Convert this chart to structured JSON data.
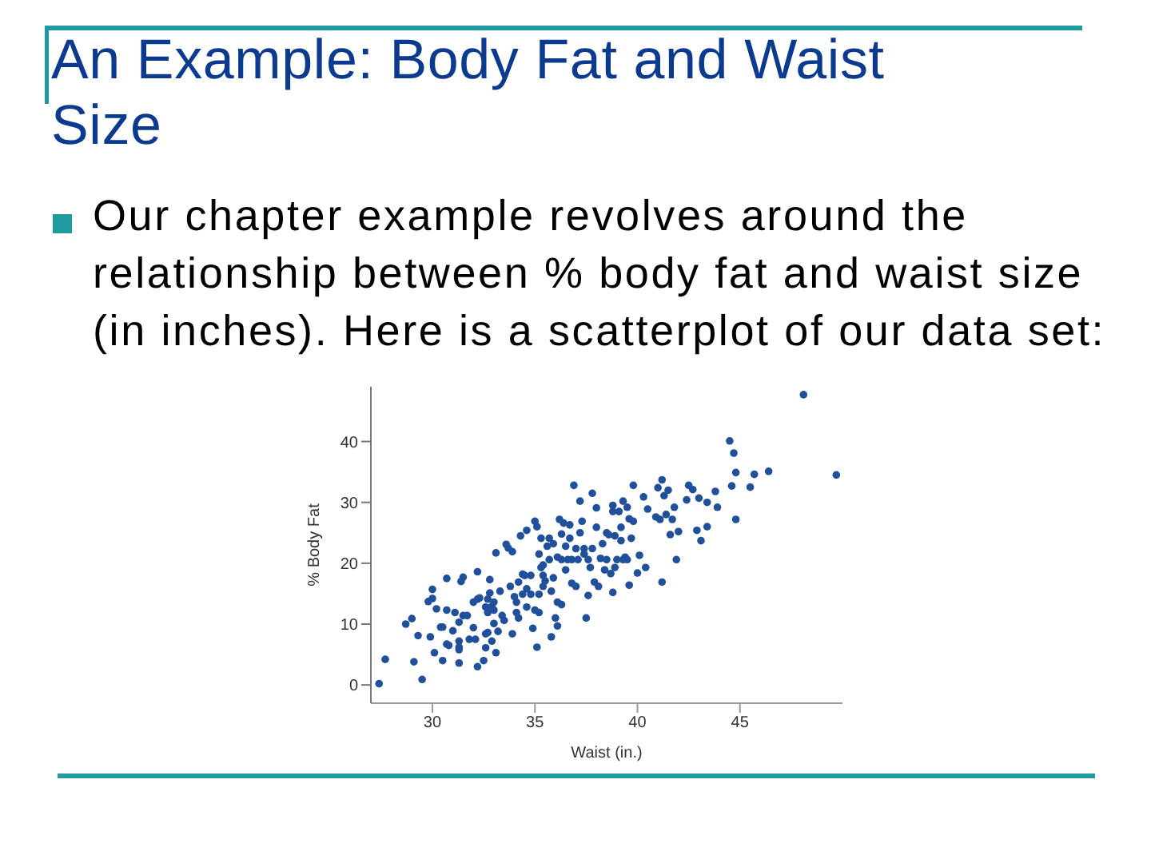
{
  "chart_data": {
    "type": "scatter",
    "title": "An Example: Body Fat and Waist Size",
    "annotations": [
      "Our chapter example revolves around the relationship between % body fat and waist size (in inches). Here is a scatterplot of our data set:"
    ],
    "xlabel": "Waist (in.)",
    "ylabel": "% Body Fat",
    "x": [
      27.4,
      27.7,
      29.1,
      29.5,
      28.7,
      29.0,
      29.3,
      29.9,
      29.8,
      30.0,
      30.0,
      30.1,
      30.2,
      30.4,
      30.5,
      30.5,
      30.7,
      30.8,
      30.7,
      30.7,
      31.0,
      31.1,
      31.3,
      31.3,
      31.3,
      31.3,
      31.4,
      31.5,
      31.5,
      31.3,
      31.7,
      31.8,
      32.0,
      32.0,
      32.1,
      32.2,
      32.2,
      32.2,
      32.3,
      32.5,
      32.6,
      32.6,
      32.7,
      32.7,
      32.6,
      32.8,
      32.8,
      32.7,
      32.9,
      33.0,
      33.0,
      33.0,
      32.9,
      33.1,
      33.1,
      33.2,
      33.3,
      33.4,
      33.5,
      33.6,
      33.7,
      33.9,
      33.8,
      33.9,
      34.0,
      34.1,
      34.1,
      34.2,
      34.2,
      34.3,
      34.4,
      34.4,
      34.5,
      34.6,
      34.6,
      34.6,
      34.8,
      34.8,
      34.9,
      35.0,
      35.0,
      35.1,
      35.1,
      35.2,
      35.2,
      35.2,
      35.3,
      35.3,
      35.4,
      35.4,
      35.4,
      35.5,
      35.6,
      35.7,
      35.7,
      35.8,
      35.8,
      35.9,
      35.9,
      36.0,
      36.1,
      36.1,
      36.1,
      36.2,
      36.3,
      36.3,
      36.3,
      36.4,
      36.5,
      36.5,
      36.6,
      36.7,
      36.7,
      36.8,
      36.8,
      36.9,
      37.0,
      37.0,
      37.1,
      37.2,
      37.2,
      37.3,
      37.4,
      37.4,
      37.5,
      37.6,
      37.6,
      37.7,
      37.8,
      37.8,
      37.9,
      38.0,
      38.0,
      38.1,
      38.2,
      38.3,
      38.4,
      38.5,
      38.5,
      38.6,
      38.7,
      38.8,
      38.8,
      38.8,
      38.9,
      38.9,
      39.0,
      39.1,
      39.2,
      39.2,
      39.3,
      39.3,
      39.4,
      39.5,
      39.5,
      39.6,
      39.6,
      39.7,
      39.8,
      39.8,
      40.0,
      40.1,
      40.3,
      40.4,
      40.5,
      40.9,
      41.0,
      41.1,
      41.2,
      41.2,
      41.3,
      41.4,
      41.5,
      41.6,
      41.7,
      41.8,
      41.9,
      42.0,
      42.4,
      42.5,
      42.7,
      42.9,
      43.0,
      43.1,
      43.4,
      43.4,
      43.8,
      43.9,
      44.5,
      44.7,
      44.6,
      44.8,
      44.8,
      45.5,
      45.7,
      46.4,
      48.1,
      49.7
    ],
    "values": [
      0.2,
      4.2,
      3.8,
      0.9,
      10.0,
      10.9,
      8.1,
      7.9,
      13.7,
      15.7,
      14.2,
      5.3,
      12.5,
      9.5,
      9.5,
      4.0,
      6.7,
      6.5,
      17.5,
      12.3,
      8.9,
      11.9,
      7.2,
      6.2,
      5.8,
      3.6,
      17.0,
      17.7,
      11.4,
      10.3,
      11.4,
      7.5,
      13.6,
      9.4,
      7.5,
      18.6,
      14.1,
      3.0,
      14.3,
      4.0,
      6.1,
      8.4,
      8.6,
      11.9,
      12.8,
      15.1,
      17.3,
      14.1,
      12.9,
      13.6,
      12.3,
      10.1,
      7.2,
      21.7,
      5.3,
      8.8,
      15.4,
      11.4,
      10.6,
      23.1,
      22.5,
      21.9,
      16.2,
      8.4,
      14.5,
      13.6,
      11.9,
      11.0,
      16.9,
      24.5,
      18.2,
      14.9,
      18.0,
      25.4,
      15.8,
      12.8,
      18.0,
      14.9,
      9.3,
      12.3,
      26.9,
      6.2,
      26.0,
      21.5,
      14.9,
      11.9,
      19.3,
      24.1,
      16.2,
      18.0,
      19.7,
      17.1,
      22.8,
      20.6,
      24.1,
      7.9,
      15.4,
      17.6,
      23.2,
      11.0,
      13.6,
      9.7,
      21.0,
      27.2,
      24.8,
      20.6,
      13.2,
      26.6,
      22.8,
      18.9,
      20.6,
      24.1,
      26.3,
      16.7,
      20.6,
      32.8,
      16.2,
      22.4,
      20.6,
      25.0,
      30.2,
      26.9,
      21.5,
      22.4,
      11.0,
      14.7,
      20.6,
      19.3,
      31.5,
      22.4,
      16.9,
      29.1,
      25.9,
      16.2,
      20.8,
      23.2,
      18.9,
      25.0,
      20.6,
      24.7,
      18.3,
      29.5,
      28.5,
      15.2,
      24.5,
      19.3,
      20.6,
      28.5,
      23.7,
      25.9,
      20.6,
      30.2,
      21.0,
      29.2,
      20.6,
      16.4,
      27.3,
      24.1,
      32.8,
      26.9,
      18.4,
      21.3,
      30.9,
      19.3,
      28.9,
      27.6,
      32.4,
      27.2,
      16.9,
      33.7,
      31.1,
      28.0,
      32.0,
      24.7,
      27.2,
      29.2,
      20.6,
      25.2,
      30.4,
      32.8,
      32.1,
      25.4,
      30.7,
      23.7,
      26.0,
      30.0,
      31.8,
      29.2,
      40.1,
      38.1,
      32.7,
      34.9,
      27.2,
      32.5,
      34.6,
      35.1,
      47.7,
      34.5
    ],
    "color": "#21509a",
    "marker": "circle",
    "xlim": [
      27,
      50
    ],
    "ylim": [
      -3,
      49
    ],
    "xticks": [
      30,
      35,
      40,
      45
    ],
    "yticks": [
      0,
      10,
      20,
      30,
      40
    ]
  }
}
